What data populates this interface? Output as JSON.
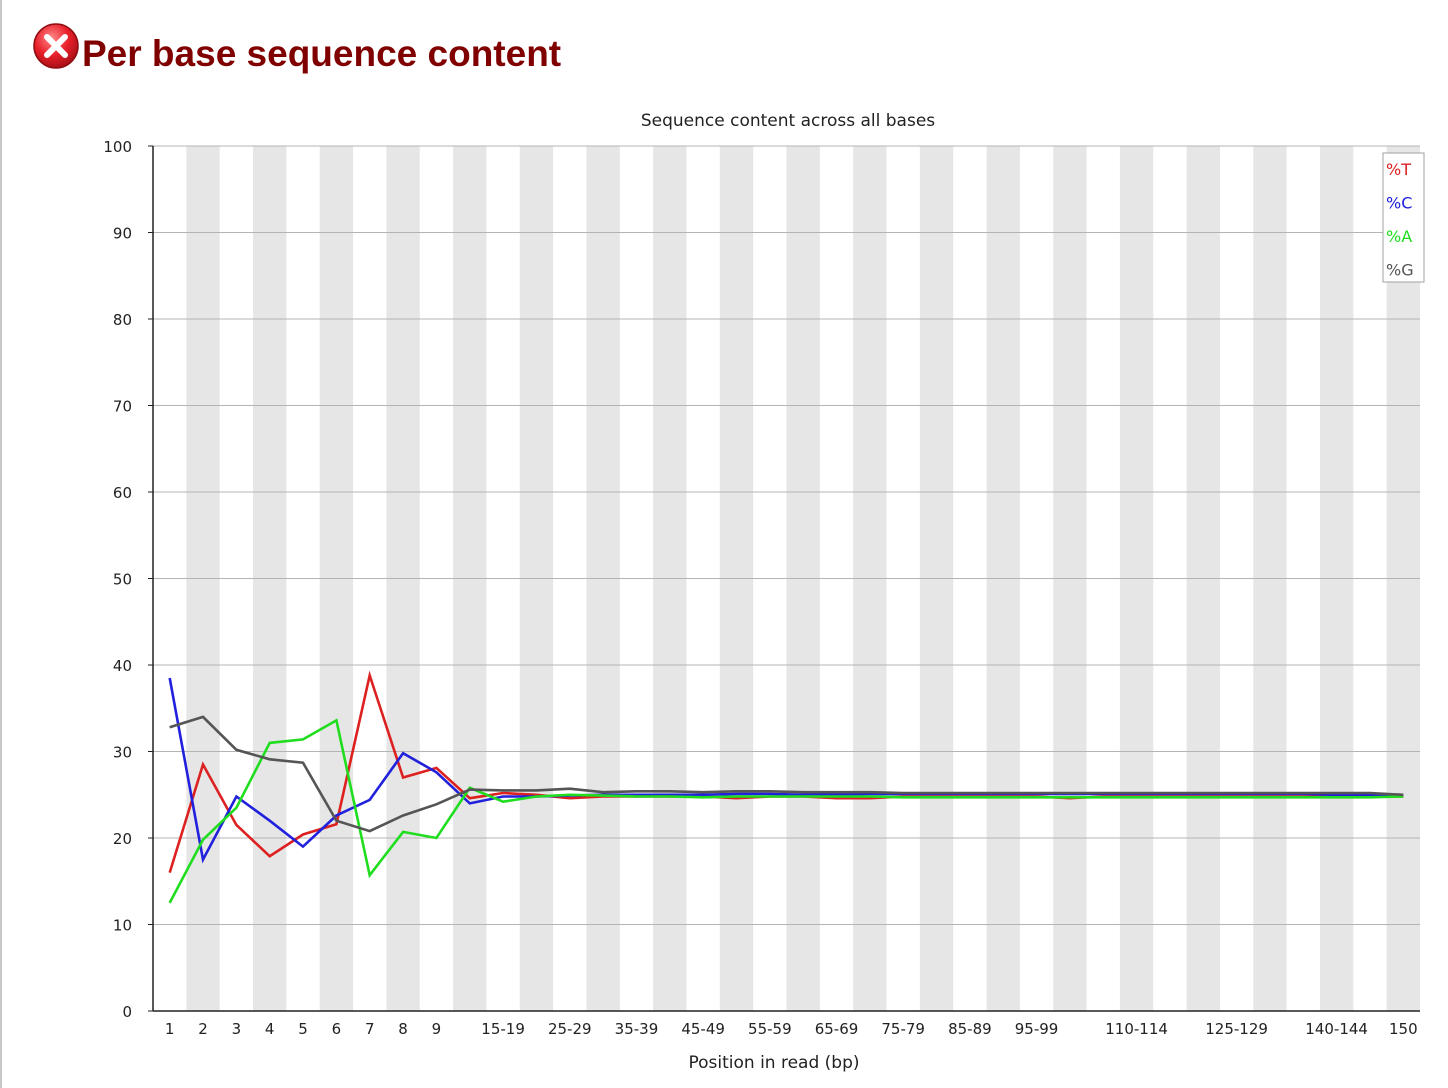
{
  "module": {
    "title": "Per base sequence content",
    "status_icon": "fail-icon",
    "status_color": "#e8202a",
    "title_color": "#800000"
  },
  "chart_data": {
    "type": "line",
    "title": "Sequence content across all bases",
    "xlabel": "Position in read (bp)",
    "ylabel": "",
    "ylim": [
      0,
      100
    ],
    "yticks": [
      0,
      10,
      20,
      30,
      40,
      50,
      60,
      70,
      80,
      90,
      100
    ],
    "grid": true,
    "legend_position": "top-right",
    "categories": [
      "1",
      "2",
      "3",
      "4",
      "5",
      "6",
      "7",
      "8",
      "9",
      "10-14",
      "15-19",
      "20-24",
      "25-29",
      "30-34",
      "35-39",
      "40-44",
      "45-49",
      "50-54",
      "55-59",
      "60-64",
      "65-69",
      "70-74",
      "75-79",
      "80-84",
      "85-89",
      "90-94",
      "95-99",
      "100-104",
      "105-109",
      "110-114",
      "115-119",
      "120-124",
      "125-129",
      "130-134",
      "135-139",
      "140-144",
      "145-149",
      "150"
    ],
    "xtick_labels": [
      "1",
      "2",
      "3",
      "4",
      "5",
      "6",
      "7",
      "8",
      "9",
      "",
      "15-19",
      "",
      "25-29",
      "",
      "35-39",
      "",
      "45-49",
      "",
      "55-59",
      "",
      "65-69",
      "",
      "75-79",
      "",
      "85-89",
      "",
      "95-99",
      "",
      "",
      "110-114",
      "",
      "",
      "125-129",
      "",
      "",
      "140-144",
      "",
      "150"
    ],
    "series": [
      {
        "name": "%T",
        "color": "#dd2020",
        "values": [
          16.0,
          28.5,
          21.5,
          17.9,
          20.4,
          21.6,
          38.8,
          27.0,
          28.1,
          24.6,
          25.2,
          25.0,
          24.6,
          24.8,
          24.8,
          24.8,
          24.8,
          24.6,
          24.8,
          24.8,
          24.6,
          24.6,
          24.8,
          24.8,
          24.8,
          24.8,
          24.8,
          24.6,
          24.8,
          24.8,
          24.8,
          24.8,
          24.8,
          24.8,
          24.8,
          24.8,
          24.8,
          24.8
        ]
      },
      {
        "name": "%C",
        "color": "#2020dd",
        "values": [
          38.5,
          17.5,
          24.8,
          22.0,
          19.0,
          22.6,
          24.4,
          29.8,
          27.6,
          24.0,
          24.8,
          24.8,
          24.9,
          25.0,
          25.0,
          25.0,
          25.0,
          25.1,
          25.1,
          25.0,
          25.0,
          25.1,
          25.1,
          25.1,
          25.1,
          25.1,
          25.1,
          25.1,
          25.1,
          25.1,
          25.1,
          25.1,
          25.1,
          25.1,
          25.1,
          25.0,
          25.0,
          24.9
        ]
      },
      {
        "name": "%A",
        "color": "#20dd20",
        "values": [
          12.5,
          19.8,
          23.5,
          31.0,
          31.4,
          33.6,
          15.7,
          20.7,
          20.0,
          25.8,
          24.2,
          24.8,
          25.0,
          24.9,
          24.8,
          24.8,
          24.7,
          24.8,
          24.8,
          24.8,
          24.8,
          24.8,
          24.7,
          24.7,
          24.7,
          24.7,
          24.7,
          24.7,
          24.7,
          24.7,
          24.7,
          24.7,
          24.7,
          24.7,
          24.7,
          24.7,
          24.7,
          24.8
        ]
      },
      {
        "name": "%G",
        "color": "#555555",
        "values": [
          32.8,
          34.0,
          30.2,
          29.1,
          28.7,
          22.0,
          20.8,
          22.6,
          23.9,
          25.6,
          25.5,
          25.5,
          25.7,
          25.3,
          25.4,
          25.4,
          25.3,
          25.4,
          25.4,
          25.3,
          25.3,
          25.3,
          25.2,
          25.2,
          25.2,
          25.2,
          25.2,
          25.2,
          25.2,
          25.2,
          25.2,
          25.2,
          25.2,
          25.2,
          25.2,
          25.2,
          25.2,
          25.0
        ]
      }
    ]
  }
}
